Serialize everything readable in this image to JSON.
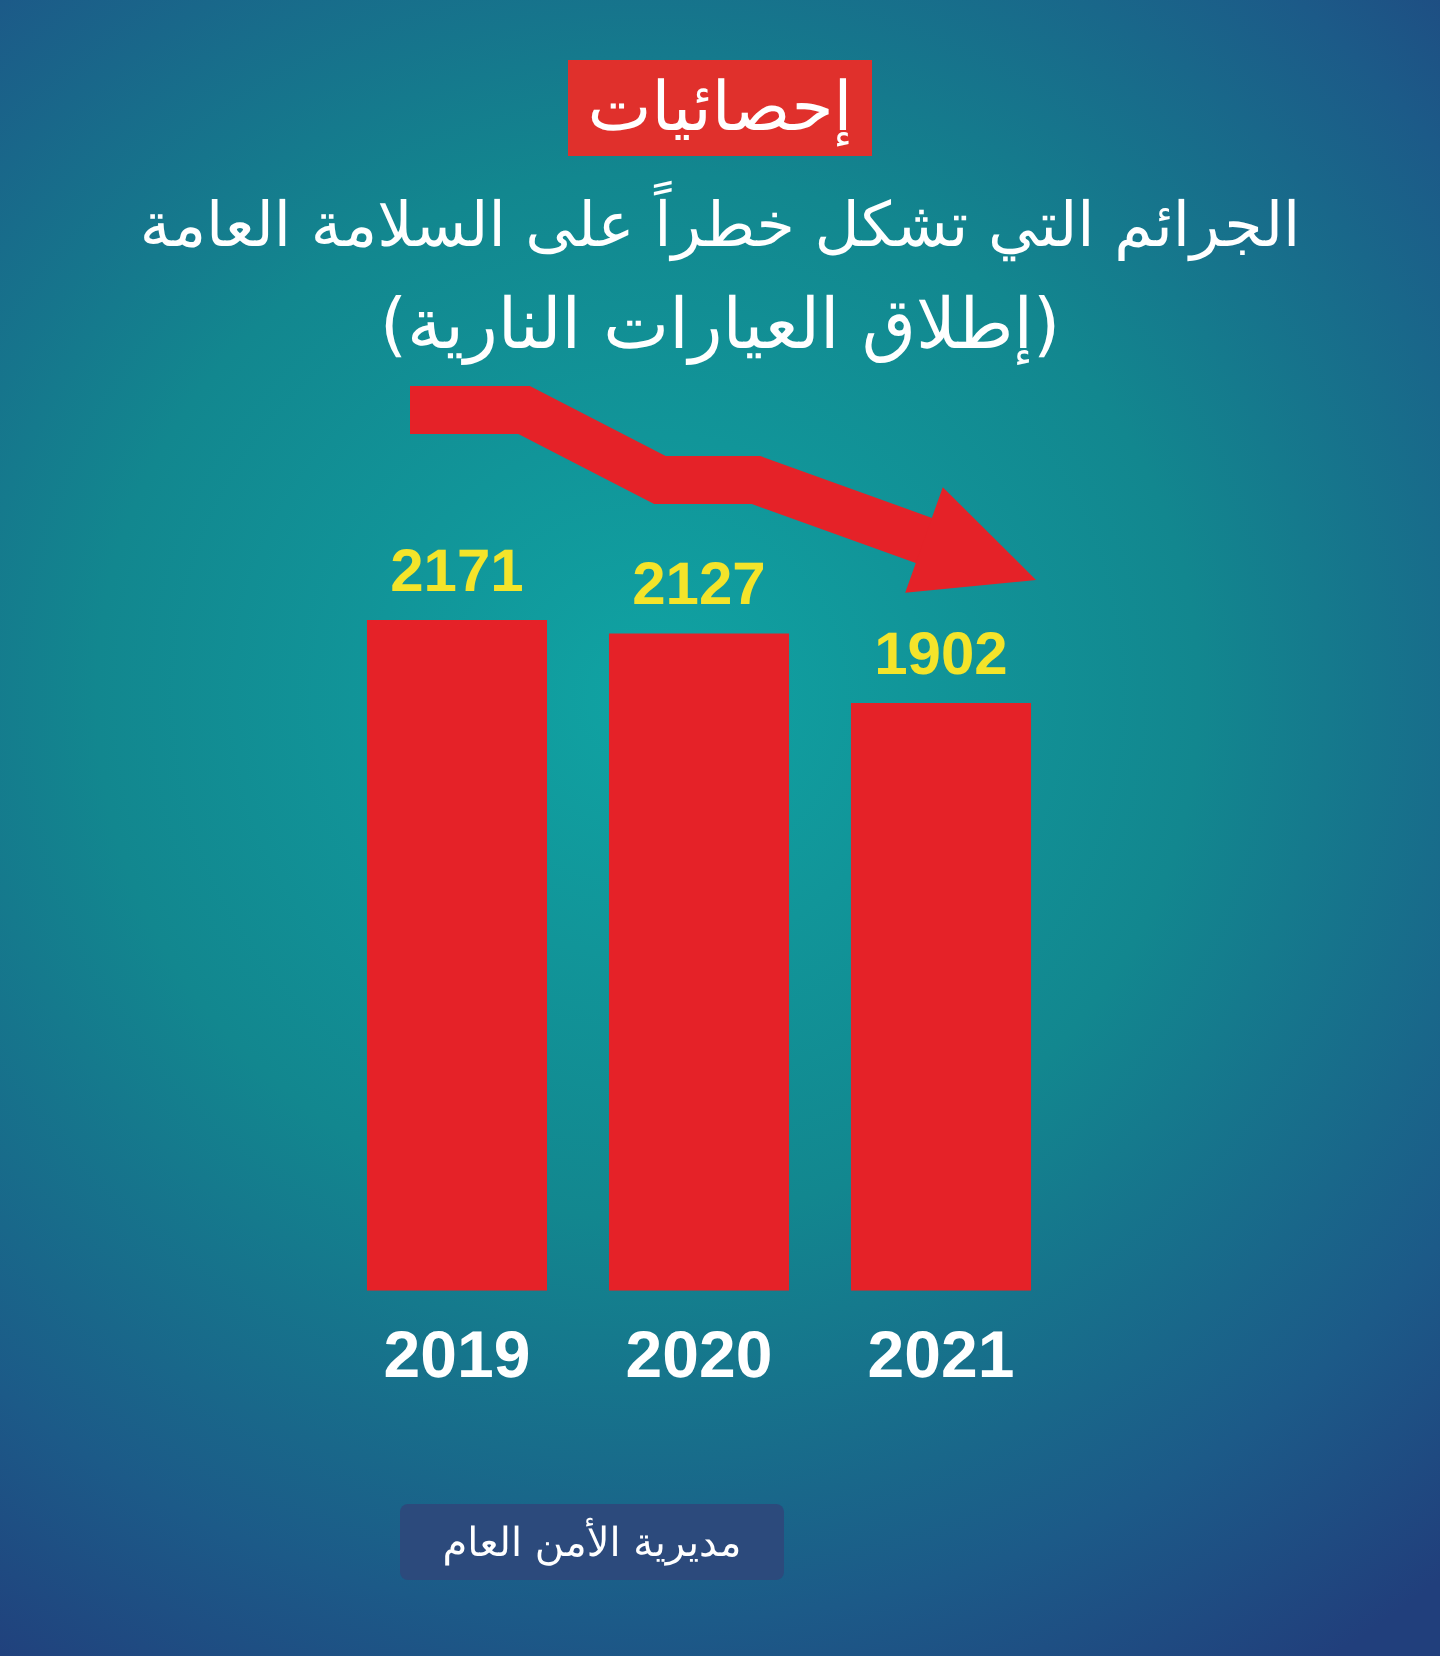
{
  "chart_data": {
    "type": "bar",
    "title": "إحصائيات",
    "subtitle": "الجرائم التي تشكل خطراً على السلامة العامة\n(إطلاق العيارات النارية)",
    "categories": [
      "2019",
      "2020",
      "2021"
    ],
    "values": [
      2171,
      2127,
      1902
    ],
    "color": "#e52228",
    "data_labels": true,
    "tick_labels": "x",
    "annotations": [
      "مديرية الأمن العام"
    ]
  }
}
